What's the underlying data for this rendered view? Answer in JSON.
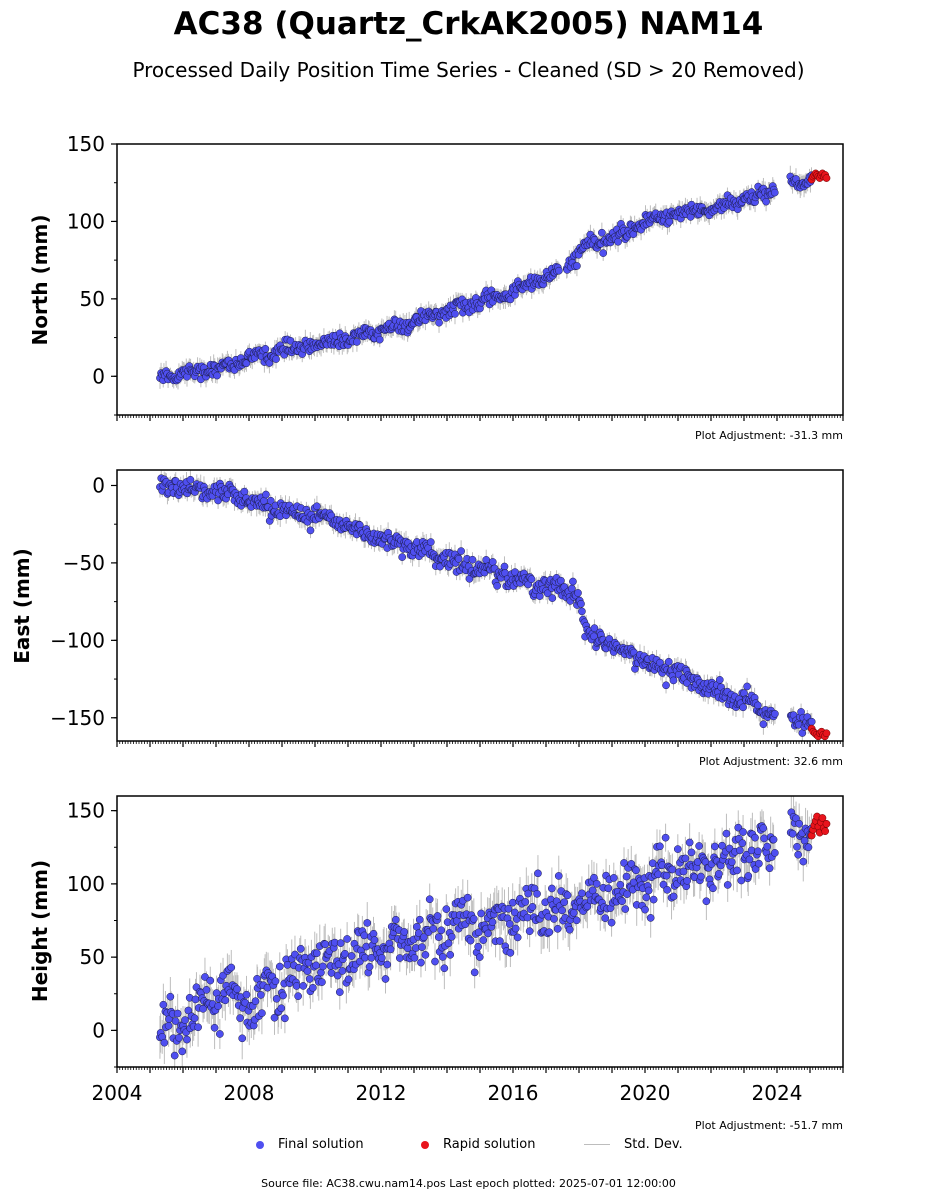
{
  "title": "AC38 (Quartz_CrkAK2005) NAM14",
  "subtitle": "Processed Daily Position Time Series - Cleaned (SD > 20 Removed)",
  "source_line": "Source file: AC38.cwu.nam14.pos  Last epoch plotted: 2025-07-01 12:00:00",
  "legend": {
    "final": "Final solution",
    "rapid": "Rapid solution",
    "std": "Std. Dev."
  },
  "colors": {
    "final": "#4f4ff0",
    "rapid": "#e8141c",
    "std": "#bdbdbd",
    "edge": "#1a1a40"
  },
  "x_axis": {
    "range": [
      2004.0,
      2026.0
    ],
    "tick_labels": [
      "2004",
      "2008",
      "2012",
      "2016",
      "2020",
      "2024"
    ]
  },
  "chart_data": [
    {
      "type": "scatter",
      "ylabel": "North (mm)",
      "ylim": [
        -25,
        150
      ],
      "yticks": [
        0,
        50,
        100,
        150
      ],
      "plot_adjustment": "Plot Adjustment: -31.3 mm",
      "trend_points": [
        [
          2005.3,
          0
        ],
        [
          2007.0,
          5
        ],
        [
          2009.0,
          17
        ],
        [
          2011.0,
          24
        ],
        [
          2013.0,
          35
        ],
        [
          2014.1,
          43
        ],
        [
          2015.5,
          50
        ],
        [
          2016.5,
          60
        ],
        [
          2017.5,
          68
        ],
        [
          2018.2,
          84
        ],
        [
          2019.0,
          89
        ],
        [
          2020.0,
          100
        ],
        [
          2021.0,
          105
        ],
        [
          2022.0,
          108
        ],
        [
          2023.0,
          114
        ],
        [
          2023.9,
          119
        ],
        [
          2024.4,
          124
        ],
        [
          2025.0,
          128
        ],
        [
          2025.5,
          130
        ]
      ],
      "gaps": [
        [
          2017.4,
          2017.6
        ],
        [
          2023.95,
          2024.4
        ]
      ],
      "series": [
        {
          "name": "Final solution",
          "x_range": [
            2005.3,
            2025.05
          ],
          "noise_sd": 2.2
        },
        {
          "name": "Rapid solution",
          "x_range": [
            2025.05,
            2025.5
          ],
          "values": [
            127,
            129,
            130,
            131,
            130,
            129,
            128,
            130,
            131,
            129,
            130,
            128
          ]
        }
      ]
    },
    {
      "type": "scatter",
      "ylabel": "East (mm)",
      "ylim": [
        -165,
        10
      ],
      "yticks": [
        0,
        -50,
        -100,
        -150
      ],
      "plot_adjustment": "Plot Adjustment: 32.6 mm",
      "trend_points": [
        [
          2005.3,
          0
        ],
        [
          2007.0,
          -3
        ],
        [
          2008.0,
          -10
        ],
        [
          2009.0,
          -15
        ],
        [
          2010.0,
          -20
        ],
        [
          2011.0,
          -27
        ],
        [
          2012.0,
          -33
        ],
        [
          2013.0,
          -40
        ],
        [
          2014.0,
          -48
        ],
        [
          2015.0,
          -53
        ],
        [
          2016.0,
          -60
        ],
        [
          2017.0,
          -66
        ],
        [
          2017.8,
          -68
        ],
        [
          2018.0,
          -75
        ],
        [
          2018.2,
          -95
        ],
        [
          2019.0,
          -105
        ],
        [
          2020.0,
          -113
        ],
        [
          2021.0,
          -120
        ],
        [
          2022.0,
          -132
        ],
        [
          2023.0,
          -140
        ],
        [
          2023.9,
          -148
        ],
        [
          2024.4,
          -150
        ],
        [
          2025.0,
          -153
        ],
        [
          2025.5,
          -160
        ]
      ],
      "gaps": [
        [
          2023.95,
          2024.4
        ]
      ],
      "series": [
        {
          "name": "Final solution",
          "x_range": [
            2005.3,
            2025.05
          ],
          "noise_sd": 3.2
        },
        {
          "name": "Rapid solution",
          "x_range": [
            2025.05,
            2025.5
          ],
          "values": [
            -157,
            -159,
            -160,
            -161,
            -162,
            -160,
            -159,
            -161,
            -162,
            -160
          ]
        }
      ]
    },
    {
      "type": "scatter",
      "ylabel": "Height (mm)",
      "ylim": [
        -25,
        160
      ],
      "yticks": [
        0,
        50,
        100,
        150
      ],
      "plot_adjustment": "Plot Adjustment: -51.7 mm",
      "trend_points": [
        [
          2005.3,
          0
        ],
        [
          2007.0,
          22
        ],
        [
          2008.0,
          22
        ],
        [
          2009.0,
          33
        ],
        [
          2010.0,
          44
        ],
        [
          2011.0,
          50
        ],
        [
          2012.0,
          53
        ],
        [
          2013.0,
          60
        ],
        [
          2014.0,
          67
        ],
        [
          2015.0,
          72
        ],
        [
          2016.0,
          78
        ],
        [
          2017.0,
          82
        ],
        [
          2017.5,
          82
        ],
        [
          2018.0,
          88
        ],
        [
          2019.0,
          92
        ],
        [
          2020.0,
          100
        ],
        [
          2021.0,
          110
        ],
        [
          2022.0,
          115
        ],
        [
          2023.0,
          120
        ],
        [
          2023.9,
          126
        ],
        [
          2024.4,
          132
        ],
        [
          2025.0,
          137
        ],
        [
          2025.5,
          140
        ]
      ],
      "gaps": [
        [
          2023.95,
          2024.4
        ]
      ],
      "series": [
        {
          "name": "Final solution",
          "x_range": [
            2005.3,
            2025.05
          ],
          "noise_sd": 9.0
        },
        {
          "name": "Rapid solution",
          "x_range": [
            2025.05,
            2025.5
          ],
          "values": [
            133,
            137,
            140,
            143,
            146,
            139,
            135,
            142,
            145,
            138,
            136,
            141
          ]
        }
      ]
    }
  ]
}
